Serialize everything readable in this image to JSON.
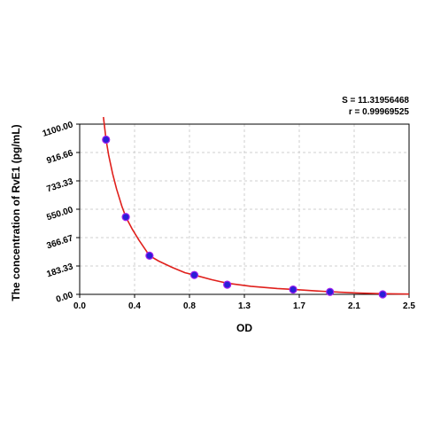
{
  "chart_data": {
    "type": "scatter",
    "title": "",
    "xlabel": "OD",
    "ylabel": "The concentration of RvE1 (pg/mL)",
    "xlim": [
      0,
      2.5
    ],
    "ylim": [
      0,
      1100
    ],
    "x_ticks": [
      "0.0",
      "0.4",
      "0.8",
      "1.3",
      "1.7",
      "2.1",
      "2.5"
    ],
    "y_ticks": [
      "0.00",
      "183.33",
      "366.67",
      "550.00",
      "733.33",
      "916.66",
      "1100.00"
    ],
    "grid": true,
    "stats": {
      "s_label": "S = 11.31956468",
      "r_label": "r = 0.99969525"
    },
    "series": [
      {
        "type": "scatter",
        "x": [
          0.2,
          0.35,
          0.53,
          0.87,
          1.12,
          1.62,
          1.9,
          2.3
        ],
        "y": [
          1000,
          500,
          250,
          125,
          62.5,
          31.25,
          15.6,
          0
        ]
      },
      {
        "type": "line",
        "x": [
          0.18,
          0.2,
          0.22,
          0.25,
          0.28,
          0.32,
          0.35,
          0.4,
          0.45,
          0.53,
          0.6,
          0.7,
          0.8,
          0.87,
          1.0,
          1.12,
          1.3,
          1.5,
          1.62,
          1.8,
          1.9,
          2.1,
          2.3,
          2.5
        ],
        "y": [
          1155,
          1000,
          900,
          780,
          680,
          570,
          500,
          420,
          350,
          250,
          215,
          175,
          140,
          125,
          95,
          72,
          52,
          38,
          32,
          22,
          17,
          9,
          4,
          2
        ]
      }
    ],
    "colors": {
      "point_fill": "#2a1fd6",
      "point_stroke": "#a020f0",
      "curve": "#e0201c",
      "grid": "#cfcfcf",
      "axis": "#000000"
    }
  }
}
